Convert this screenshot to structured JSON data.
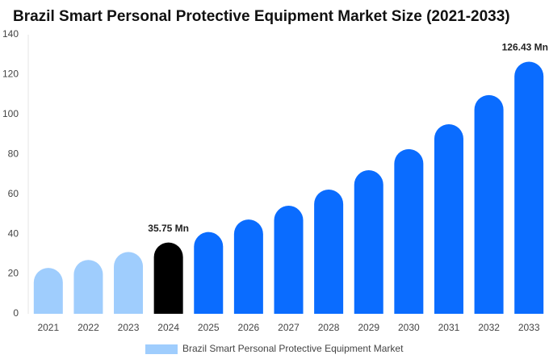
{
  "chart_data": {
    "type": "bar",
    "title": "Brazil Smart Personal Protective Equipment Market Size (2021-2033)",
    "categories": [
      "2021",
      "2022",
      "2023",
      "2024",
      "2025",
      "2026",
      "2027",
      "2028",
      "2029",
      "2030",
      "2031",
      "2032",
      "2033"
    ],
    "series": [
      {
        "name": "Brazil Smart Personal Protective Equipment Market",
        "color": "#9fcdfd",
        "colors": [
          "#9fcdfd",
          "#9fcdfd",
          "#9fcdfd",
          "#000000",
          "#0a6cff",
          "#0a6cff",
          "#0a6cff",
          "#0a6cff",
          "#0a6cff",
          "#0a6cff",
          "#0a6cff",
          "#0a6cff",
          "#0a6cff"
        ],
        "values": [
          23,
          27,
          31,
          35.75,
          41,
          47.3,
          54.2,
          62.3,
          72,
          82.6,
          95.1,
          109.7,
          126.43
        ],
        "value_labels": [
          null,
          null,
          null,
          "35.75 Mn",
          null,
          null,
          null,
          null,
          null,
          null,
          null,
          null,
          "126.43 Mn"
        ]
      }
    ],
    "ylim": [
      0,
      140
    ],
    "yticks": [
      0,
      20,
      40,
      60,
      80,
      100,
      120,
      140
    ],
    "grid": false
  }
}
